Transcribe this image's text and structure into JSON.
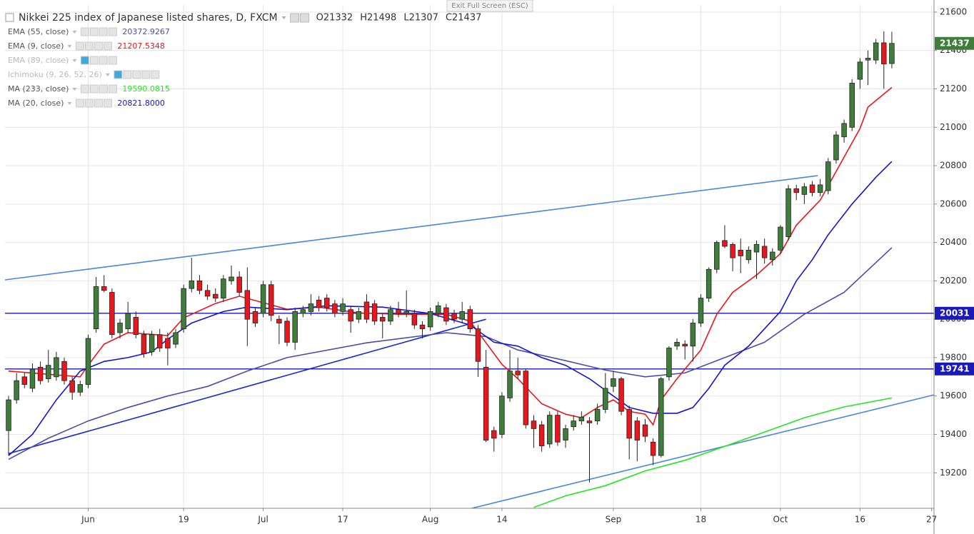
{
  "chart_data": {
    "type": "candlestick",
    "title": "Nikkei 225 index of Japanese listed shares, D, FXCM",
    "ohlc_labels": [
      "O21332",
      "H21498",
      "L21307",
      "C21437"
    ],
    "button": "Exit Full Screen (ESC)",
    "up_color": "#3f7d3a",
    "down_color": "#e8161d",
    "ylim": [
      19015,
      21637
    ],
    "yticks": [
      19200,
      19400,
      19600,
      19800,
      20000,
      20200,
      20400,
      20600,
      20800,
      21000,
      21200,
      21400,
      21600
    ],
    "xlim": [
      -0.45,
      116.3
    ],
    "xticks": [
      {
        "value": 10,
        "label": "Jun"
      },
      {
        "value": 22,
        "label": "19"
      },
      {
        "value": 32,
        "label": "Jul"
      },
      {
        "value": 42,
        "label": "17"
      },
      {
        "value": 53,
        "label": "Aug"
      },
      {
        "value": 62,
        "label": "14"
      },
      {
        "value": 76,
        "label": "Sep"
      },
      {
        "value": 87,
        "label": "18"
      },
      {
        "value": 97,
        "label": "Oct"
      },
      {
        "value": 107,
        "label": "16"
      },
      {
        "value": 116,
        "label": "27"
      }
    ],
    "x": [
      0,
      1,
      2,
      3,
      4,
      5,
      6,
      7,
      8,
      9,
      10,
      11,
      12,
      13,
      14,
      15,
      16,
      17,
      18,
      19,
      20,
      21,
      22,
      23,
      24,
      25,
      26,
      27,
      28,
      29,
      30,
      31,
      32,
      33,
      34,
      35,
      36,
      37,
      38,
      39,
      40,
      41,
      42,
      43,
      44,
      45,
      46,
      47,
      48,
      49,
      50,
      51,
      52,
      53,
      54,
      55,
      56,
      57,
      58,
      59,
      60,
      61,
      62,
      63,
      64,
      65,
      66,
      67,
      68,
      69,
      70,
      71,
      72,
      73,
      74,
      75,
      76,
      77,
      78,
      79,
      80,
      81,
      82,
      83,
      84,
      85,
      86,
      87,
      88,
      89,
      90,
      91,
      92,
      93,
      94,
      95,
      96,
      97,
      98,
      99,
      100,
      101,
      102,
      103,
      104,
      105,
      106,
      107,
      108,
      109,
      110,
      111
    ],
    "candles": [
      [
        19420,
        19600,
        19290,
        19580
      ],
      [
        19580,
        19720,
        19560,
        19680
      ],
      [
        19700,
        19720,
        19640,
        19660
      ],
      [
        19640,
        19770,
        19620,
        19740
      ],
      [
        19750,
        19780,
        19660,
        19680
      ],
      [
        19690,
        19840,
        19670,
        19760
      ],
      [
        19700,
        19830,
        19680,
        19800
      ],
      [
        19780,
        19800,
        19660,
        19680
      ],
      [
        19680,
        19700,
        19580,
        19620
      ],
      [
        19620,
        19680,
        19600,
        19660
      ],
      [
        19660,
        19920,
        19640,
        19900
      ],
      [
        19950,
        20220,
        19930,
        20170
      ],
      [
        20170,
        20230,
        20140,
        20150
      ],
      [
        20140,
        20160,
        19900,
        19920
      ],
      [
        19930,
        20000,
        19900,
        19980
      ],
      [
        19950,
        20090,
        19930,
        20030
      ],
      [
        20010,
        20040,
        19900,
        19920
      ],
      [
        19920,
        19940,
        19800,
        19820
      ],
      [
        19830,
        19940,
        19810,
        19920
      ],
      [
        19920,
        19950,
        19830,
        19850
      ],
      [
        19900,
        19930,
        19760,
        19850
      ],
      [
        19870,
        19950,
        19850,
        19930
      ],
      [
        19950,
        20180,
        19930,
        20160
      ],
      [
        20160,
        20320,
        20140,
        20200
      ],
      [
        20200,
        20230,
        20130,
        20150
      ],
      [
        20150,
        20180,
        20100,
        20120
      ],
      [
        20130,
        20160,
        20090,
        20110
      ],
      [
        20110,
        20230,
        20090,
        20210
      ],
      [
        20200,
        20280,
        20180,
        20220
      ],
      [
        20220,
        20250,
        20120,
        20140
      ],
      [
        20150,
        20270,
        19860,
        20000
      ],
      [
        20040,
        20060,
        19960,
        19980
      ],
      [
        20030,
        20200,
        20010,
        20180
      ],
      [
        20180,
        20200,
        19990,
        20020
      ],
      [
        20000,
        20020,
        19870,
        19980
      ],
      [
        19990,
        20010,
        19860,
        19880
      ],
      [
        19880,
        20060,
        19840,
        20040
      ],
      [
        20030,
        20070,
        20010,
        20050
      ],
      [
        20040,
        20130,
        20020,
        20080
      ],
      [
        20100,
        20120,
        20040,
        20060
      ],
      [
        20110,
        20130,
        20040,
        20060
      ],
      [
        20080,
        20100,
        20010,
        20030
      ],
      [
        20040,
        20110,
        20020,
        20080
      ],
      [
        20050,
        20070,
        19930,
        19990
      ],
      [
        20000,
        20060,
        19980,
        20040
      ],
      [
        20090,
        20130,
        19980,
        20000
      ],
      [
        20080,
        20100,
        19970,
        19990
      ],
      [
        20010,
        20030,
        19900,
        19990
      ],
      [
        19990,
        20070,
        19970,
        20050
      ],
      [
        20050,
        20090,
        20010,
        20030
      ],
      [
        20030,
        20150,
        20010,
        20040
      ],
      [
        20030,
        20050,
        19950,
        19970
      ],
      [
        19970,
        19990,
        19900,
        19950
      ],
      [
        19960,
        20060,
        19940,
        20040
      ],
      [
        20030,
        20090,
        20010,
        20070
      ],
      [
        20060,
        20080,
        19970,
        19990
      ],
      [
        20030,
        20050,
        19980,
        20000
      ],
      [
        20000,
        20090,
        19980,
        20040
      ],
      [
        20050,
        20070,
        19930,
        19950
      ],
      [
        19950,
        19970,
        19700,
        19780
      ],
      [
        19750,
        19840,
        19360,
        19370
      ],
      [
        19420,
        19440,
        19310,
        19380
      ],
      [
        19400,
        19620,
        19380,
        19600
      ],
      [
        19590,
        19840,
        19570,
        19730
      ],
      [
        19730,
        19800,
        19690,
        19710
      ],
      [
        19730,
        19740,
        19430,
        19450
      ],
      [
        19470,
        19500,
        19330,
        19430
      ],
      [
        19450,
        19470,
        19310,
        19340
      ],
      [
        19350,
        19520,
        19330,
        19500
      ],
      [
        19500,
        19520,
        19340,
        19360
      ],
      [
        19370,
        19450,
        19330,
        19430
      ],
      [
        19440,
        19500,
        19420,
        19470
      ],
      [
        19470,
        19520,
        19450,
        19490
      ],
      [
        19470,
        19490,
        19150,
        19460
      ],
      [
        19470,
        19560,
        19450,
        19530
      ],
      [
        19530,
        19720,
        19510,
        19640
      ],
      [
        19650,
        19730,
        19620,
        19690
      ],
      [
        19690,
        19700,
        19500,
        19520
      ],
      [
        19530,
        19550,
        19270,
        19380
      ],
      [
        19470,
        19490,
        19260,
        19370
      ],
      [
        19450,
        19480,
        19360,
        19390
      ],
      [
        19360,
        19380,
        19240,
        19290
      ],
      [
        19290,
        19700,
        19280,
        19690
      ],
      [
        19700,
        19860,
        19680,
        19850
      ],
      [
        19860,
        19900,
        19840,
        19880
      ],
      [
        19870,
        19890,
        19790,
        19860
      ],
      [
        19860,
        20000,
        19780,
        19980
      ],
      [
        19980,
        20130,
        19960,
        20110
      ],
      [
        20110,
        20270,
        20090,
        20260
      ],
      [
        20260,
        20410,
        20240,
        20400
      ],
      [
        20410,
        20490,
        20370,
        20380
      ],
      [
        20390,
        20400,
        20250,
        20320
      ],
      [
        20360,
        20420,
        20240,
        20330
      ],
      [
        20310,
        20380,
        20290,
        20360
      ],
      [
        20350,
        20410,
        20210,
        20390
      ],
      [
        20380,
        20420,
        20290,
        20320
      ],
      [
        20310,
        20370,
        20280,
        20350
      ],
      [
        20360,
        20490,
        20340,
        20480
      ],
      [
        20430,
        20700,
        20410,
        20680
      ],
      [
        20680,
        20700,
        20620,
        20660
      ],
      [
        20650,
        20710,
        20600,
        20690
      ],
      [
        20700,
        20720,
        20640,
        20660
      ],
      [
        20660,
        20730,
        20640,
        20700
      ],
      [
        20670,
        20840,
        20650,
        20820
      ],
      [
        20830,
        20980,
        20810,
        20960
      ],
      [
        20950,
        21040,
        20920,
        21020
      ],
      [
        21000,
        21250,
        20980,
        21230
      ],
      [
        21250,
        21360,
        21200,
        21340
      ],
      [
        21350,
        21400,
        21220,
        21360
      ],
      [
        21350,
        21460,
        21330,
        21440
      ],
      [
        21440,
        21500,
        21200,
        21330
      ],
      [
        21332,
        21498,
        21307,
        21437
      ]
    ],
    "series": [
      {
        "name": "EMA (55, close)",
        "color": "#4c4ca8",
        "value_label": "20372.9267",
        "x": [
          0,
          5,
          10,
          15,
          20,
          25,
          30,
          35,
          45,
          55,
          60,
          64,
          70,
          75,
          80,
          85,
          90,
          95,
          100,
          105,
          111
        ],
        "values": [
          19270,
          19380,
          19470,
          19540,
          19600,
          19650,
          19730,
          19800,
          19877,
          19930,
          19910,
          19840,
          19784,
          19735,
          19700,
          19720,
          19800,
          19880,
          20026,
          20140,
          20372.9267
        ]
      },
      {
        "name": "EMA (9, close)",
        "color": "#e8161d",
        "value_label": "21207.5348",
        "x": [
          0,
          9,
          10,
          12,
          15,
          20,
          22,
          26,
          29,
          35,
          39,
          44,
          49,
          55,
          58,
          60,
          62,
          64,
          67,
          70,
          72,
          74,
          76,
          78,
          80,
          81,
          82,
          84,
          87,
          89,
          91,
          94,
          97,
          99,
          102,
          105,
          107,
          108,
          111
        ],
        "values": [
          19730,
          19700,
          19760,
          19870,
          19930,
          19915,
          20007,
          20082,
          20120,
          20052,
          20063,
          20033,
          20026,
          20026,
          19990,
          19877,
          19765,
          19690,
          19560,
          19505,
          19487,
          19540,
          19580,
          19520,
          19505,
          19450,
          19580,
          19690,
          19840,
          20026,
          20140,
          20230,
          20342,
          20490,
          20620,
          20845,
          20994,
          21105,
          21207.5348
        ]
      },
      {
        "name": "EMA (89, close)",
        "color": "#9aa0c8",
        "hidden": true
      },
      {
        "name": "Ichimoku (9, 26, 52, 26)",
        "color": "#9aa0c8",
        "hidden": true
      },
      {
        "name": "MA (233, close)",
        "color": "#22e622",
        "value_label": "19590.0815",
        "x": [
          66,
          70,
          75,
          80,
          85,
          90,
          95,
          100,
          105,
          111
        ],
        "values": [
          19020,
          19080,
          19133,
          19210,
          19265,
          19338,
          19412,
          19487,
          19543,
          19590.0815
        ]
      },
      {
        "name": "MA (20, close)",
        "color": "#1414d2",
        "value_label": "20821.8000",
        "x": [
          0,
          3,
          6,
          9,
          12,
          15,
          18,
          20,
          23,
          27,
          30,
          35,
          40,
          47,
          53,
          58,
          61,
          64,
          67,
          70,
          73,
          76,
          78,
          81,
          84,
          86,
          88,
          90,
          93,
          95,
          97,
          99,
          101,
          103,
          106,
          109,
          111
        ],
        "values": [
          19290,
          19400,
          19580,
          19730,
          19780,
          19800,
          19830,
          19896,
          19980,
          20040,
          20063,
          20050,
          20070,
          20063,
          20030,
          19970,
          19880,
          19860,
          19800,
          19760,
          19690,
          19600,
          19540,
          19510,
          19510,
          19540,
          19640,
          19760,
          19860,
          19950,
          20040,
          20200,
          20310,
          20440,
          20600,
          20740,
          20821.8
        ]
      }
    ],
    "trendlines": [
      {
        "color": "#4a86d8",
        "x": [
          -0.45,
          101.7
        ],
        "values": [
          20205,
          20748
        ]
      },
      {
        "color": "#4a86d8",
        "x": [
          58.2,
          116.3
        ],
        "values": [
          19015,
          19606
        ]
      },
      {
        "color": "#1a2bd0",
        "x": [
          0,
          60
        ],
        "values": [
          19300,
          20000
        ]
      }
    ],
    "price_lines": [
      {
        "value": 20031,
        "color": "#1a1ab8"
      },
      {
        "value": 19741,
        "color": "#1a1ab8"
      }
    ]
  }
}
